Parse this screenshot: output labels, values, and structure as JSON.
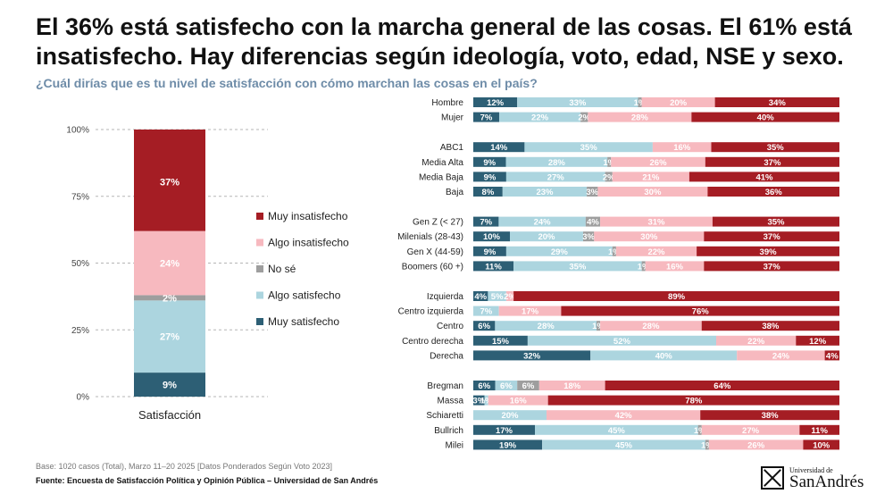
{
  "title": "El 36% está satisfecho con la marcha general de las cosas. El 61% está insatisfecho. Hay diferencias según ideología, voto, edad, NSE y sexo.",
  "subtitle": "¿Cuál dirías que es tu nivel de satisfacción con cómo marchan las cosas en el país?",
  "note": "Base: 1020 casos (Total), Marzo 11–20 2025 [Datos Ponderados Según Voto 2023]",
  "source": "Fuente: Encuesta de Satisfacción Política y Opinión Pública – Universidad de San Andrés",
  "logo": {
    "small": "Universidad de",
    "big": "SanAndrés"
  },
  "colors": {
    "Muy satisfecho": "#2d5f75",
    "Algo satisfecho": "#acd5df",
    "No sé": "#9e9e9e",
    "Algo insatisfecho": "#f7b9bf",
    "Muy insatisfecho": "#a51d24"
  },
  "chart_data": [
    {
      "type": "bar",
      "stacked": true,
      "orientation": "vertical",
      "categories": [
        "Satisfacción"
      ],
      "yticks": [
        "0%",
        "25%",
        "50%",
        "75%",
        "100%"
      ],
      "ylim": [
        0,
        100
      ],
      "legend_position": "right",
      "series": [
        {
          "name": "Muy satisfecho",
          "values": [
            9
          ],
          "label": "9%"
        },
        {
          "name": "Algo satisfecho",
          "values": [
            27
          ],
          "label": "27%"
        },
        {
          "name": "No sé",
          "values": [
            2
          ],
          "label": "2%"
        },
        {
          "name": "Algo insatisfecho",
          "values": [
            24
          ],
          "label": "24%"
        },
        {
          "name": "Muy insatisfecho",
          "values": [
            37
          ],
          "label": "37%"
        }
      ],
      "legend": [
        "Muy insatisfecho",
        "Algo insatisfecho",
        "No sé",
        "Algo satisfecho",
        "Muy satisfecho"
      ]
    },
    {
      "type": "bar",
      "stacked": true,
      "orientation": "horizontal",
      "series_order": [
        "Muy satisfecho",
        "Algo satisfecho",
        "No sé",
        "Algo insatisfecho",
        "Muy insatisfecho"
      ],
      "groups": [
        {
          "rows": [
            {
              "label": "Hombre",
              "values": [
                12,
                33,
                1,
                20,
                34
              ]
            },
            {
              "label": "Mujer",
              "values": [
                7,
                22,
                2,
                28,
                40
              ]
            }
          ]
        },
        {
          "rows": [
            {
              "label": "ABC1",
              "values": [
                14,
                35,
                0,
                16,
                35
              ]
            },
            {
              "label": "Media Alta",
              "values": [
                9,
                28,
                1,
                26,
                37
              ]
            },
            {
              "label": "Media Baja",
              "values": [
                9,
                27,
                2,
                21,
                41
              ]
            },
            {
              "label": "Baja",
              "values": [
                8,
                23,
                3,
                30,
                36
              ]
            }
          ]
        },
        {
          "rows": [
            {
              "label": "Gen Z (< 27)",
              "values": [
                7,
                24,
                4,
                31,
                35
              ]
            },
            {
              "label": "Milenials (28-43)",
              "values": [
                10,
                20,
                3,
                30,
                37
              ]
            },
            {
              "label": "Gen X (44-59)",
              "values": [
                9,
                29,
                1,
                22,
                39
              ]
            },
            {
              "label": "Boomers (60 +)",
              "values": [
                11,
                35,
                1,
                16,
                37
              ]
            }
          ]
        },
        {
          "rows": [
            {
              "label": "Izquierda",
              "values": [
                4,
                5,
                0,
                2,
                89
              ]
            },
            {
              "label": "Centro izquierda",
              "values": [
                0,
                7,
                0,
                17,
                76
              ]
            },
            {
              "label": "Centro",
              "values": [
                6,
                28,
                1,
                28,
                38
              ]
            },
            {
              "label": "Centro derecha",
              "values": [
                15,
                52,
                0,
                22,
                12
              ]
            },
            {
              "label": "Derecha",
              "values": [
                32,
                40,
                0,
                24,
                4
              ]
            }
          ]
        },
        {
          "rows": [
            {
              "label": "Bregman",
              "values": [
                6,
                6,
                6,
                18,
                64
              ]
            },
            {
              "label": "Massa",
              "values": [
                3,
                1,
                0,
                16,
                78
              ]
            },
            {
              "label": "Schiaretti",
              "values": [
                0,
                20,
                0,
                42,
                38
              ]
            },
            {
              "label": "Bullrich",
              "values": [
                17,
                45,
                1,
                27,
                11
              ]
            },
            {
              "label": "Milei",
              "values": [
                19,
                45,
                1,
                26,
                10
              ]
            }
          ]
        }
      ]
    }
  ]
}
